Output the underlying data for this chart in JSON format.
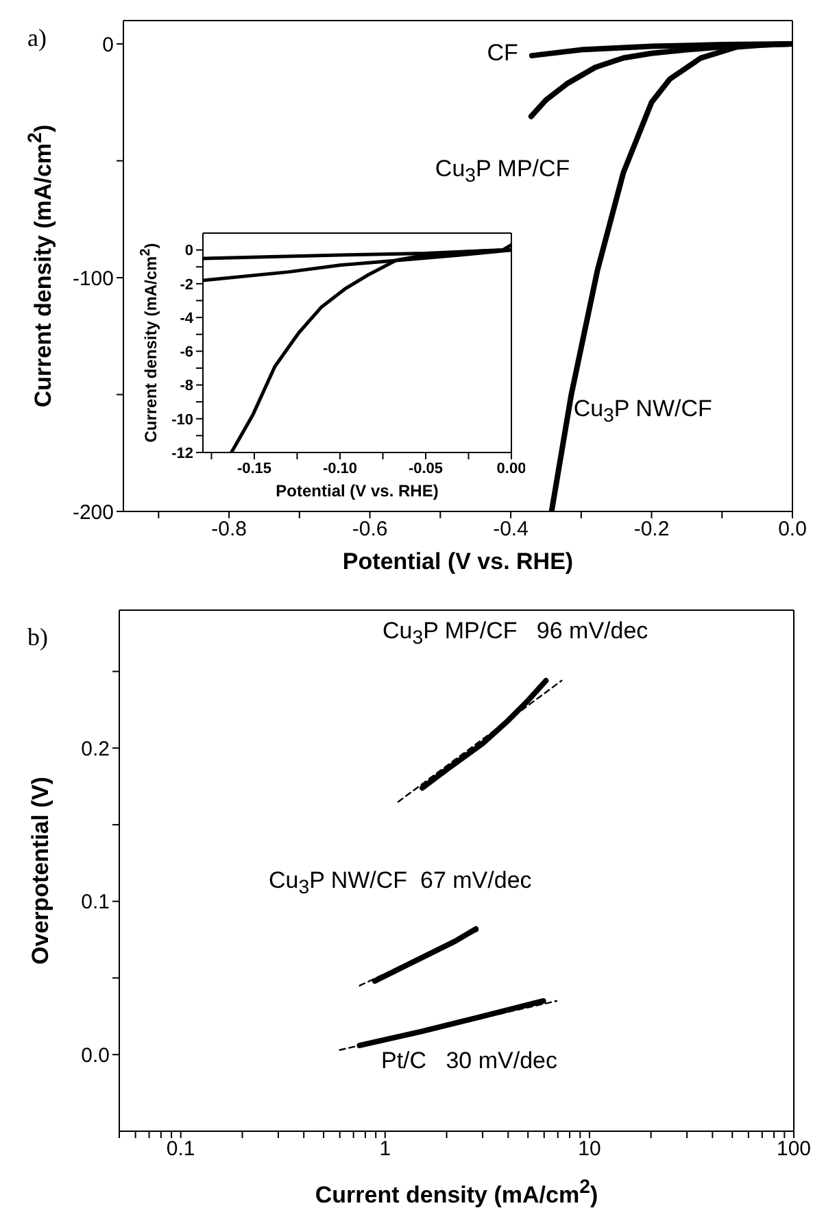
{
  "chart_data": [
    {
      "type": "line",
      "xlabel": "Potential (V vs. RHE)",
      "ylabel": "Current density (mA/cm$^{2}$)",
      "annotations": [
        "a)"
      ],
      "xlim": [
        -0.95,
        0
      ],
      "xticks": [
        {
          "value": -0.9,
          "label": null
        },
        -0.8,
        {
          "value": -0.7,
          "label": null
        },
        -0.6,
        {
          "value": -0.5,
          "label": null
        },
        -0.4,
        {
          "value": -0.3,
          "label": null
        },
        -0.2,
        {
          "value": -0.1,
          "label": null
        },
        {
          "value": 0,
          "label": "0.0"
        }
      ],
      "ylim": [
        -200,
        10
      ],
      "yticks": [
        0,
        {
          "value": -50,
          "label": null
        },
        -100,
        {
          "value": -150,
          "label": null
        },
        -200
      ],
      "series": [
        {
          "name": "CF",
          "color": "#000000",
          "line_style": "solid",
          "x": [
            -0.37,
            -0.3,
            -0.2,
            -0.1,
            0
          ],
          "values": [
            -5,
            -2.5,
            -1,
            -0.3,
            0
          ]
        },
        {
          "name": "Cu$_{3}$P MP/CF",
          "color": "#000000",
          "line_style": "solid",
          "x": [
            -0.371,
            -0.35,
            -0.32,
            -0.28,
            -0.24,
            -0.2,
            -0.15,
            -0.1,
            -0.05,
            0
          ],
          "values": [
            -31,
            -24,
            -17,
            -10,
            -6,
            -4,
            -2.5,
            -1.2,
            -0.5,
            0
          ]
        },
        {
          "name": "Cu$_{3}$P NW/CF",
          "color": "#000000",
          "line_style": "solid",
          "x": [
            -0.342,
            -0.314,
            -0.277,
            -0.24,
            -0.2,
            -0.174,
            -0.13,
            -0.079,
            -0.04,
            0
          ],
          "values": [
            -200,
            -150,
            -97,
            -55,
            -25,
            -15,
            -6,
            -1.3,
            -0.4,
            0
          ]
        }
      ]
    },
    {
      "type": "line",
      "xlabel": "Potential (V vs. RHE)",
      "ylabel": "Current density (mA/cm$^{2}$)",
      "xlim": [
        -0.18,
        0
      ],
      "xticks": [
        {
          "value": -0.175,
          "label": null
        },
        -0.15,
        {
          "value": -0.125,
          "label": null
        },
        {
          "value": -0.1,
          "label": "-0.10"
        },
        {
          "value": -0.075,
          "label": null
        },
        -0.05,
        {
          "value": -0.025,
          "label": null
        },
        {
          "value": 0,
          "label": "0.00"
        }
      ],
      "ylim": [
        -12,
        1
      ],
      "yticks": [
        0,
        {
          "value": -1,
          "label": null
        },
        -2,
        {
          "value": -3,
          "label": null
        },
        -4,
        {
          "value": -5,
          "label": null
        },
        -6,
        {
          "value": -7,
          "label": null
        },
        -8,
        {
          "value": -9,
          "label": null
        },
        -10,
        {
          "value": -11,
          "label": null
        },
        -12
      ],
      "series": [
        {
          "color": "#000000",
          "line_style": "solid",
          "x": [
            -0.18,
            -0.1,
            -0.05,
            -0.005,
            0
          ],
          "values": [
            -0.5,
            -0.3,
            -0.2,
            0,
            0.3
          ]
        },
        {
          "color": "#000000",
          "line_style": "solid",
          "x": [
            -0.18,
            -0.13,
            -0.1,
            -0.065,
            -0.03,
            0
          ],
          "values": [
            -1.8,
            -1.3,
            -0.9,
            -0.6,
            -0.3,
            0
          ]
        },
        {
          "color": "#000000",
          "line_style": "solid",
          "x": [
            -0.1634,
            -0.151,
            -0.138,
            -0.124,
            -0.111,
            -0.097,
            -0.084,
            -0.067,
            -0.05,
            -0.025,
            0
          ],
          "values": [
            -12,
            -9.8,
            -6.9,
            -4.9,
            -3.4,
            -2.3,
            -1.5,
            -0.6,
            -0.3,
            -0.1,
            0
          ]
        }
      ]
    },
    {
      "type": "line",
      "xlabel": "Current density (mA/cm$^{2}$)",
      "ylabel": "Overpotential (V)",
      "log": "x",
      "annotations": [
        "b)",
        "Cu$_{3}$P MP/CF   96 mV/dec",
        "Cu$_{3}$P NW/CF  67 mV/dec",
        "Pt/C   30 mV/dec"
      ],
      "xlim": [
        0.05,
        100
      ],
      "xticks": [
        {
          "value": 0.05,
          "label": null
        },
        {
          "value": 0.06,
          "label": null
        },
        {
          "value": 0.07,
          "label": null
        },
        {
          "value": 0.08,
          "label": null
        },
        {
          "value": 0.09,
          "label": null
        },
        0.1,
        {
          "value": 0.2,
          "label": null
        },
        {
          "value": 0.3,
          "label": null
        },
        {
          "value": 0.4,
          "label": null
        },
        {
          "value": 0.5,
          "label": null
        },
        {
          "value": 0.6,
          "label": null
        },
        {
          "value": 0.7,
          "label": null
        },
        {
          "value": 0.8,
          "label": null
        },
        {
          "value": 0.9,
          "label": null
        },
        1,
        {
          "value": 2,
          "label": null
        },
        {
          "value": 3,
          "label": null
        },
        {
          "value": 4,
          "label": null
        },
        {
          "value": 5,
          "label": null
        },
        {
          "value": 6,
          "label": null
        },
        {
          "value": 7,
          "label": null
        },
        {
          "value": 8,
          "label": null
        },
        {
          "value": 9,
          "label": null
        },
        10,
        {
          "value": 20,
          "label": null
        },
        {
          "value": 30,
          "label": null
        },
        {
          "value": 40,
          "label": null
        },
        {
          "value": 50,
          "label": null
        },
        {
          "value": 60,
          "label": null
        },
        {
          "value": 70,
          "label": null
        },
        {
          "value": 80,
          "label": null
        },
        {
          "value": 90,
          "label": null
        },
        100
      ],
      "ylim": [
        -0.05,
        0.29
      ],
      "yticks": [
        {
          "value": 0,
          "label": "0.0"
        },
        {
          "value": 0.05,
          "label": null
        },
        0.1,
        {
          "value": 0.15,
          "label": null
        },
        0.2,
        {
          "value": 0.25,
          "label": null
        }
      ],
      "series": [
        {
          "color": "#000000",
          "line_style": "solid",
          "x": [
            1.52,
            2,
            3,
            4,
            5,
            6.12
          ],
          "values": [
            0.174,
            0.186,
            0.203,
            0.218,
            0.231,
            0.244
          ]
        },
        {
          "color": "#000000",
          "line_style": "dashed",
          "x": [
            1.16,
            7.3
          ],
          "values": [
            0.165,
            0.244
          ]
        },
        {
          "color": "#000000",
          "line_style": "solid",
          "x": [
            0.89,
            1.5,
            2.2,
            2.78
          ],
          "values": [
            0.048,
            0.063,
            0.074,
            0.082
          ]
        },
        {
          "color": "#000000",
          "line_style": "dashed",
          "x": [
            0.75,
            2.95
          ],
          "values": [
            0.045,
            0.082
          ]
        },
        {
          "color": "#000000",
          "line_style": "solid",
          "x": [
            0.75,
            1.5,
            3,
            5.95
          ],
          "values": [
            0.006,
            0.015,
            0.025,
            0.035
          ]
        },
        {
          "color": "#000000",
          "line_style": "dashed",
          "x": [
            0.6,
            6.9
          ],
          "values": [
            0.003,
            0.035
          ]
        }
      ]
    }
  ]
}
